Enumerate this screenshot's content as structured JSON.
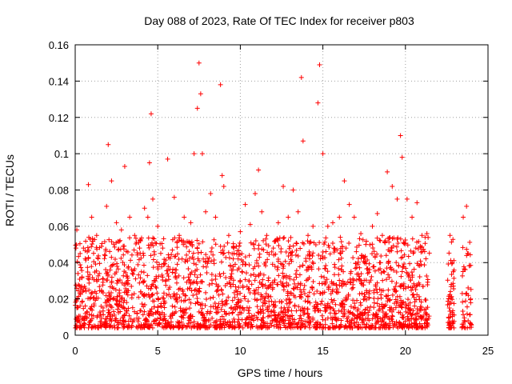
{
  "chart_data": {
    "type": "scatter",
    "title": "Day 088 of 2023, Rate Of TEC Index for receiver p803",
    "xlabel": "GPS time / hours",
    "ylabel": "ROTI / TECUs",
    "xlim": [
      0,
      25
    ],
    "ylim": [
      0,
      0.16
    ],
    "xticks": [
      "0",
      "5",
      "10",
      "15",
      "20",
      "25"
    ],
    "yticks": [
      "0",
      "0.02",
      "0.04",
      "0.06",
      "0.08",
      "0.1",
      "0.12",
      "0.14",
      "0.16"
    ],
    "grid": true,
    "marker": "+",
    "color": "#ff0000",
    "series": [
      {
        "x": [
          0.1,
          0.3,
          0.5,
          0.8,
          1.0,
          1.3,
          1.6,
          1.9,
          2.0,
          2.2,
          2.5,
          2.8,
          3.0,
          3.3,
          3.6,
          3.9,
          4.2,
          4.4,
          4.5,
          4.6,
          4.7,
          5.0,
          5.3,
          5.6,
          6.0,
          6.3,
          6.6,
          7.0,
          7.2,
          7.4,
          7.5,
          7.6,
          7.7,
          7.9,
          8.2,
          8.5,
          8.8,
          8.9,
          9.0,
          9.3,
          9.6,
          10.0,
          10.3,
          10.6,
          10.9,
          11.1,
          11.3,
          11.6,
          12.0,
          12.3,
          12.6,
          12.9,
          13.2,
          13.5,
          13.7,
          13.8,
          14.1,
          14.4,
          14.7,
          14.8,
          15.0,
          15.3,
          15.6,
          16.0,
          16.3,
          16.6,
          16.9,
          17.3,
          17.6,
          18.0,
          18.3,
          18.6,
          18.9,
          19.2,
          19.5,
          19.7,
          19.8,
          20.1,
          20.4,
          20.7,
          21.0,
          21.3,
          22.7,
          22.9,
          23.5,
          23.7,
          23.8
        ],
        "y": [
          0.058,
          0.045,
          0.048,
          0.083,
          0.065,
          0.055,
          0.049,
          0.071,
          0.105,
          0.085,
          0.062,
          0.058,
          0.093,
          0.065,
          0.055,
          0.048,
          0.07,
          0.065,
          0.095,
          0.122,
          0.075,
          0.06,
          0.048,
          0.097,
          0.076,
          0.055,
          0.065,
          0.062,
          0.1,
          0.125,
          0.15,
          0.133,
          0.1,
          0.068,
          0.078,
          0.065,
          0.138,
          0.088,
          0.082,
          0.055,
          0.048,
          0.057,
          0.072,
          0.061,
          0.078,
          0.091,
          0.068,
          0.055,
          0.048,
          0.062,
          0.082,
          0.065,
          0.08,
          0.068,
          0.142,
          0.107,
          0.055,
          0.06,
          0.128,
          0.149,
          0.1,
          0.06,
          0.062,
          0.065,
          0.085,
          0.072,
          0.065,
          0.056,
          0.05,
          0.06,
          0.067,
          0.055,
          0.09,
          0.082,
          0.075,
          0.11,
          0.098,
          0.075,
          0.065,
          0.073,
          0.055,
          0.056,
          0.055,
          0.035,
          0.065,
          0.071,
          0.045
        ]
      }
    ]
  }
}
